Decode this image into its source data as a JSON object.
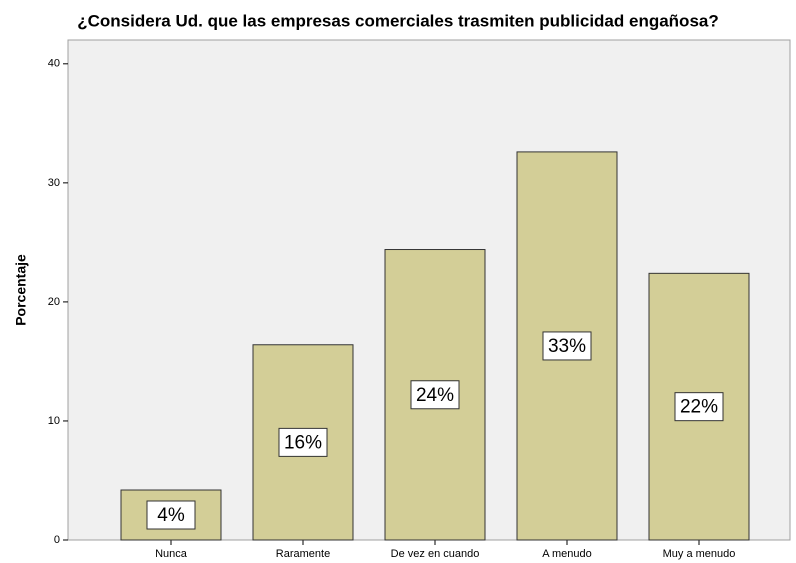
{
  "chart_data": {
    "type": "bar",
    "title": "¿Considera Ud. que las empresas comerciales trasmiten publicidad engañosa?",
    "y_label": "Porcentaje",
    "categories": [
      "Nunca",
      "Raramente",
      "De vez en cuando",
      "A menudo",
      "Muy a menudo"
    ],
    "values": [
      4.2,
      16.4,
      24.4,
      32.6,
      22.4
    ],
    "value_labels": [
      "4%",
      "16%",
      "24%",
      "33%",
      "22%"
    ],
    "color": "#d3ce97",
    "ylim": [
      0,
      42
    ],
    "yticks": [
      0,
      10,
      20,
      30,
      40
    ],
    "grid": false
  }
}
